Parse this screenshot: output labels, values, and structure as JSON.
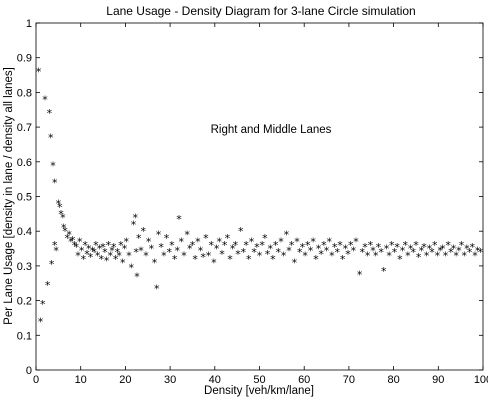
{
  "chart_data": {
    "type": "scatter",
    "title": "Lane Usage - Density Diagram for 3-lane Circle simulation",
    "xlabel": "Density [veh/km/lane]",
    "ylabel": "Per Lane Usage [density in lane / density all lanes]",
    "annotation": "Right and Middle Lanes",
    "xlim": [
      0,
      100
    ],
    "ylim": [
      0,
      1
    ],
    "xticks": [
      "0",
      "10",
      "20",
      "30",
      "40",
      "50",
      "60",
      "70",
      "80",
      "90",
      "100"
    ],
    "yticks": [
      "0",
      "0.1",
      "0.2",
      "0.3",
      "0.4",
      "0.5",
      "0.6",
      "0.7",
      "0.8",
      "0.9",
      "1"
    ],
    "grid": false,
    "marker": "*",
    "marker_color": "#000000",
    "series": [
      {
        "points": [
          [
            0.6,
            0.86
          ],
          [
            1.0,
            0.14
          ],
          [
            1.5,
            0.19
          ],
          [
            2.0,
            0.78
          ],
          [
            2.6,
            0.245
          ],
          [
            3.0,
            0.74
          ],
          [
            3.3,
            0.67
          ],
          [
            3.5,
            0.305
          ],
          [
            3.8,
            0.59
          ],
          [
            4.2,
            0.54
          ],
          [
            4.2,
            0.36
          ],
          [
            4.5,
            0.345
          ],
          [
            5.0,
            0.48
          ],
          [
            5.3,
            0.47
          ],
          [
            5.6,
            0.45
          ],
          [
            6.0,
            0.44
          ],
          [
            6.2,
            0.41
          ],
          [
            6.5,
            0.4
          ],
          [
            7.0,
            0.38
          ],
          [
            7.4,
            0.39
          ],
          [
            7.8,
            0.37
          ],
          [
            8.2,
            0.375
          ],
          [
            8.6,
            0.36
          ],
          [
            9.0,
            0.355
          ],
          [
            9.4,
            0.33
          ],
          [
            9.8,
            0.37
          ],
          [
            10.2,
            0.345
          ],
          [
            10.6,
            0.32
          ],
          [
            11.0,
            0.36
          ],
          [
            11.4,
            0.335
          ],
          [
            11.8,
            0.35
          ],
          [
            12.2,
            0.325
          ],
          [
            12.6,
            0.345
          ],
          [
            13.0,
            0.34
          ],
          [
            13.4,
            0.36
          ],
          [
            13.8,
            0.33
          ],
          [
            14.2,
            0.35
          ],
          [
            14.6,
            0.32
          ],
          [
            15.0,
            0.355
          ],
          [
            15.4,
            0.34
          ],
          [
            15.8,
            0.315
          ],
          [
            16.2,
            0.36
          ],
          [
            16.6,
            0.33
          ],
          [
            17.0,
            0.345
          ],
          [
            17.4,
            0.355
          ],
          [
            17.8,
            0.32
          ],
          [
            18.2,
            0.34
          ],
          [
            18.6,
            0.33
          ],
          [
            19.0,
            0.36
          ],
          [
            19.4,
            0.31
          ],
          [
            19.8,
            0.35
          ],
          [
            20.2,
            0.37
          ],
          [
            20.8,
            0.33
          ],
          [
            21.3,
            0.295
          ],
          [
            21.8,
            0.42
          ],
          [
            22.2,
            0.44
          ],
          [
            22.4,
            0.34
          ],
          [
            22.6,
            0.27
          ],
          [
            23.0,
            0.38
          ],
          [
            23.5,
            0.345
          ],
          [
            24.0,
            0.4
          ],
          [
            24.6,
            0.33
          ],
          [
            25.2,
            0.37
          ],
          [
            25.8,
            0.35
          ],
          [
            26.5,
            0.31
          ],
          [
            27.0,
            0.235
          ],
          [
            27.4,
            0.39
          ],
          [
            28.0,
            0.355
          ],
          [
            28.6,
            0.33
          ],
          [
            29.2,
            0.38
          ],
          [
            29.8,
            0.34
          ],
          [
            30.4,
            0.36
          ],
          [
            31.0,
            0.32
          ],
          [
            31.6,
            0.345
          ],
          [
            32.0,
            0.435
          ],
          [
            32.5,
            0.37
          ],
          [
            33.1,
            0.33
          ],
          [
            33.8,
            0.39
          ],
          [
            34.4,
            0.35
          ],
          [
            35.0,
            0.36
          ],
          [
            35.6,
            0.32
          ],
          [
            36.2,
            0.37
          ],
          [
            36.8,
            0.345
          ],
          [
            37.4,
            0.325
          ],
          [
            38.0,
            0.38
          ],
          [
            38.6,
            0.33
          ],
          [
            39.2,
            0.36
          ],
          [
            39.8,
            0.31
          ],
          [
            40.4,
            0.35
          ],
          [
            41.0,
            0.37
          ],
          [
            41.6,
            0.335
          ],
          [
            42.2,
            0.36
          ],
          [
            42.8,
            0.38
          ],
          [
            43.4,
            0.32
          ],
          [
            44.0,
            0.35
          ],
          [
            44.6,
            0.36
          ],
          [
            45.2,
            0.335
          ],
          [
            45.8,
            0.4
          ],
          [
            46.4,
            0.34
          ],
          [
            47.0,
            0.36
          ],
          [
            47.6,
            0.32
          ],
          [
            48.2,
            0.37
          ],
          [
            48.8,
            0.34
          ],
          [
            49.4,
            0.355
          ],
          [
            50.0,
            0.33
          ],
          [
            50.6,
            0.36
          ],
          [
            51.2,
            0.38
          ],
          [
            51.8,
            0.335
          ],
          [
            52.4,
            0.35
          ],
          [
            53.0,
            0.32
          ],
          [
            53.6,
            0.36
          ],
          [
            54.2,
            0.34
          ],
          [
            54.8,
            0.37
          ],
          [
            55.4,
            0.33
          ],
          [
            56.0,
            0.39
          ],
          [
            56.6,
            0.345
          ],
          [
            57.2,
            0.36
          ],
          [
            57.8,
            0.31
          ],
          [
            58.4,
            0.37
          ],
          [
            59.0,
            0.34
          ],
          [
            59.6,
            0.355
          ],
          [
            60.2,
            0.33
          ],
          [
            60.8,
            0.36
          ],
          [
            61.4,
            0.345
          ],
          [
            62.0,
            0.37
          ],
          [
            62.6,
            0.32
          ],
          [
            63.2,
            0.35
          ],
          [
            63.8,
            0.335
          ],
          [
            64.4,
            0.36
          ],
          [
            65.0,
            0.345
          ],
          [
            65.6,
            0.37
          ],
          [
            66.2,
            0.33
          ],
          [
            66.8,
            0.355
          ],
          [
            67.4,
            0.34
          ],
          [
            68.0,
            0.36
          ],
          [
            68.6,
            0.32
          ],
          [
            69.2,
            0.35
          ],
          [
            69.8,
            0.335
          ],
          [
            70.4,
            0.36
          ],
          [
            71.0,
            0.345
          ],
          [
            71.6,
            0.37
          ],
          [
            72.4,
            0.275
          ],
          [
            73.0,
            0.34
          ],
          [
            73.6,
            0.355
          ],
          [
            74.2,
            0.33
          ],
          [
            74.8,
            0.36
          ],
          [
            75.4,
            0.345
          ],
          [
            76.0,
            0.33
          ],
          [
            76.6,
            0.355
          ],
          [
            77.2,
            0.34
          ],
          [
            77.8,
            0.285
          ],
          [
            78.4,
            0.35
          ],
          [
            79.0,
            0.33
          ],
          [
            79.6,
            0.36
          ],
          [
            80.2,
            0.34
          ],
          [
            80.8,
            0.355
          ],
          [
            81.4,
            0.32
          ],
          [
            82.0,
            0.345
          ],
          [
            82.6,
            0.36
          ],
          [
            83.2,
            0.33
          ],
          [
            83.8,
            0.35
          ],
          [
            84.4,
            0.34
          ],
          [
            85.0,
            0.36
          ],
          [
            85.6,
            0.325
          ],
          [
            86.2,
            0.345
          ],
          [
            86.8,
            0.355
          ],
          [
            87.4,
            0.33
          ],
          [
            88.0,
            0.35
          ],
          [
            88.6,
            0.34
          ],
          [
            89.2,
            0.36
          ],
          [
            89.8,
            0.33
          ],
          [
            90.4,
            0.345
          ],
          [
            91.0,
            0.35
          ],
          [
            91.6,
            0.33
          ],
          [
            92.2,
            0.36
          ],
          [
            92.8,
            0.34
          ],
          [
            93.4,
            0.35
          ],
          [
            94.0,
            0.33
          ],
          [
            94.6,
            0.345
          ],
          [
            95.2,
            0.36
          ],
          [
            95.8,
            0.33
          ],
          [
            96.4,
            0.35
          ],
          [
            97.0,
            0.34
          ],
          [
            97.6,
            0.355
          ],
          [
            98.2,
            0.33
          ],
          [
            98.8,
            0.345
          ],
          [
            99.4,
            0.34
          ]
        ]
      }
    ]
  }
}
